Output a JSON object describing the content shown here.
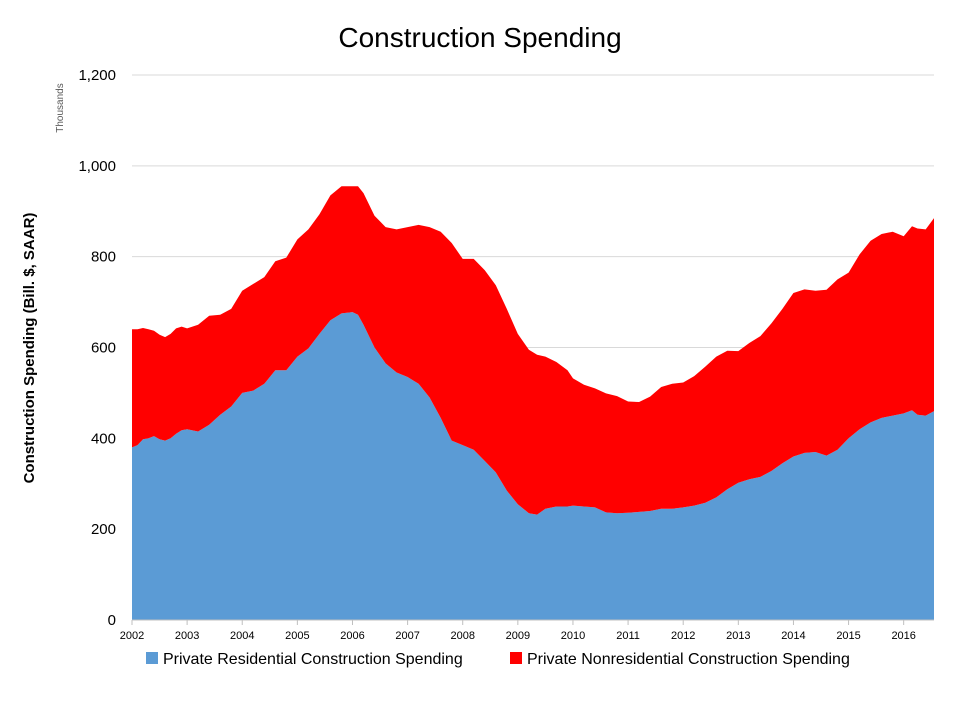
{
  "chart_data": {
    "type": "area",
    "stacked": true,
    "title": "Construction Spending",
    "ylabel": "Construction Spending (Bill. $, SAAR)",
    "yunit_label": "Thousands",
    "ylim": [
      0,
      1200
    ],
    "yticks": [
      0,
      200,
      400,
      600,
      800,
      1000,
      1200
    ],
    "ytick_labels": [
      "0",
      "200",
      "400",
      "600",
      "800",
      "1,000",
      "1,200"
    ],
    "xlim": [
      2002.0,
      2016.55
    ],
    "xticks": [
      2002,
      2003,
      2004,
      2005,
      2006,
      2007,
      2008,
      2009,
      2010,
      2011,
      2012,
      2013,
      2014,
      2015,
      2016
    ],
    "xtick_labels": [
      "2002",
      "2003",
      "2004",
      "2005",
      "2006",
      "2007",
      "2008",
      "2009",
      "2010",
      "2011",
      "2012",
      "2013",
      "2014",
      "2015",
      "2016"
    ],
    "grid": "horizontal",
    "legend_position": "bottom",
    "x": [
      2002.0,
      2002.1,
      2002.2,
      2002.3,
      2002.4,
      2002.5,
      2002.6,
      2002.7,
      2002.8,
      2002.9,
      2003.0,
      2003.2,
      2003.4,
      2003.6,
      2003.8,
      2004.0,
      2004.2,
      2004.4,
      2004.6,
      2004.8,
      2005.0,
      2005.2,
      2005.4,
      2005.6,
      2005.8,
      2006.0,
      2006.1,
      2006.2,
      2006.4,
      2006.6,
      2006.8,
      2007.0,
      2007.2,
      2007.4,
      2007.6,
      2007.8,
      2008.0,
      2008.2,
      2008.4,
      2008.6,
      2008.8,
      2009.0,
      2009.2,
      2009.35,
      2009.5,
      2009.7,
      2009.9,
      2010.0,
      2010.2,
      2010.4,
      2010.6,
      2010.8,
      2011.0,
      2011.2,
      2011.4,
      2011.6,
      2011.8,
      2012.0,
      2012.2,
      2012.4,
      2012.6,
      2012.8,
      2013.0,
      2013.2,
      2013.4,
      2013.6,
      2013.8,
      2014.0,
      2014.2,
      2014.4,
      2014.6,
      2014.8,
      2015.0,
      2015.2,
      2015.4,
      2015.6,
      2015.8,
      2016.0,
      2016.15,
      2016.25,
      2016.4,
      2016.55
    ],
    "series": [
      {
        "name": "Private Residential Construction Spending",
        "color": "#5b9bd5",
        "values": [
          380,
          385,
          398,
          400,
          405,
          398,
          395,
          400,
          410,
          418,
          420,
          415,
          430,
          452,
          470,
          500,
          505,
          520,
          550,
          550,
          580,
          598,
          630,
          660,
          675,
          678,
          672,
          650,
          600,
          565,
          545,
          535,
          520,
          490,
          445,
          395,
          385,
          375,
          350,
          325,
          285,
          255,
          235,
          232,
          245,
          250,
          250,
          252,
          250,
          248,
          237,
          235,
          236,
          238,
          240,
          245,
          245,
          248,
          252,
          258,
          270,
          288,
          302,
          310,
          315,
          328,
          345,
          360,
          368,
          370,
          362,
          375,
          400,
          420,
          435,
          445,
          450,
          455,
          462,
          452,
          450,
          460
        ]
      },
      {
        "name": "Private Nonresidential Construction Spending",
        "color": "#ff0000",
        "values": [
          260,
          255,
          245,
          240,
          232,
          230,
          228,
          230,
          232,
          228,
          222,
          235,
          240,
          220,
          215,
          225,
          235,
          235,
          240,
          248,
          258,
          262,
          263,
          275,
          280,
          277,
          283,
          290,
          290,
          300,
          315,
          330,
          350,
          375,
          410,
          435,
          410,
          420,
          420,
          412,
          400,
          375,
          360,
          352,
          335,
          318,
          300,
          280,
          268,
          262,
          262,
          258,
          245,
          242,
          252,
          268,
          275,
          275,
          285,
          300,
          310,
          305,
          290,
          300,
          310,
          325,
          340,
          360,
          360,
          355,
          365,
          375,
          365,
          385,
          400,
          405,
          405,
          390,
          405,
          410,
          410,
          425
        ]
      }
    ]
  }
}
